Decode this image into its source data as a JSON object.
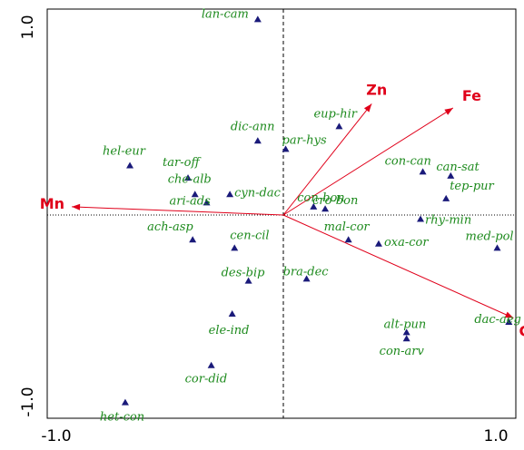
{
  "chart_data": {
    "type": "scatter",
    "title": "",
    "xlabel": "",
    "ylabel": "",
    "xlim": [
      -1.0,
      1.0
    ],
    "ylim": [
      -1.0,
      1.0
    ],
    "x_ticks": [
      {
        "value": -1.0,
        "label": "-1.0"
      },
      {
        "value": 1.0,
        "label": "1.0"
      }
    ],
    "y_ticks": [
      {
        "value": -1.0,
        "label": "-1.0"
      },
      {
        "value": 1.0,
        "label": "1.0"
      }
    ],
    "colors": {
      "species_marker": "#1a1a7a",
      "species_label": "#1d8a1d",
      "env_vector": "#e0001a",
      "axis_line": "#000000",
      "frame": "#000000"
    },
    "species": [
      {
        "name": "lan-cam",
        "x": -0.11,
        "y": 0.95
      },
      {
        "name": "eup-hir",
        "x": 0.24,
        "y": 0.43
      },
      {
        "name": "dic-ann",
        "x": -0.11,
        "y": 0.36
      },
      {
        "name": "par-hys",
        "x": 0.01,
        "y": 0.32
      },
      {
        "name": "hel-eur",
        "x": -0.66,
        "y": 0.24
      },
      {
        "name": "tar-off",
        "x": -0.41,
        "y": 0.18
      },
      {
        "name": "che-alb",
        "x": -0.38,
        "y": 0.1
      },
      {
        "name": "ari-ads",
        "x": -0.33,
        "y": 0.06
      },
      {
        "name": "cyn-dac",
        "x": -0.23,
        "y": 0.1
      },
      {
        "name": "con-bon",
        "x": 0.13,
        "y": 0.04
      },
      {
        "name": "cro-bon",
        "x": 0.18,
        "y": 0.03
      },
      {
        "name": "con-can",
        "x": 0.6,
        "y": 0.21
      },
      {
        "name": "can-sat",
        "x": 0.72,
        "y": 0.19
      },
      {
        "name": "tep-pur",
        "x": 0.7,
        "y": 0.08
      },
      {
        "name": "rhy-min",
        "x": 0.59,
        "y": -0.02
      },
      {
        "name": "ach-asp",
        "x": -0.39,
        "y": -0.12
      },
      {
        "name": "cen-cil",
        "x": -0.21,
        "y": -0.16
      },
      {
        "name": "mal-cor",
        "x": 0.28,
        "y": -0.12
      },
      {
        "name": "oxa-cor",
        "x": 0.41,
        "y": -0.14
      },
      {
        "name": "med-pol",
        "x": 0.92,
        "y": -0.16
      },
      {
        "name": "des-bip",
        "x": -0.15,
        "y": -0.32
      },
      {
        "name": "bra-dec",
        "x": 0.1,
        "y": -0.31
      },
      {
        "name": "dac-aeg",
        "x": 0.97,
        "y": -0.52
      },
      {
        "name": "ele-ind",
        "x": -0.22,
        "y": -0.48
      },
      {
        "name": "alt-pun",
        "x": 0.53,
        "y": -0.57
      },
      {
        "name": "con-arv",
        "x": 0.53,
        "y": -0.6
      },
      {
        "name": "cor-did",
        "x": -0.31,
        "y": -0.73
      },
      {
        "name": "het-con",
        "x": -0.68,
        "y": -0.91
      }
    ],
    "env_vectors": [
      {
        "name": "Mn",
        "x": -0.91,
        "y": 0.04
      },
      {
        "name": "Zn",
        "x": 0.38,
        "y": 0.54
      },
      {
        "name": "Fe",
        "x": 0.73,
        "y": 0.52
      },
      {
        "name": "Cu",
        "x": 0.99,
        "y": -0.5
      }
    ]
  }
}
